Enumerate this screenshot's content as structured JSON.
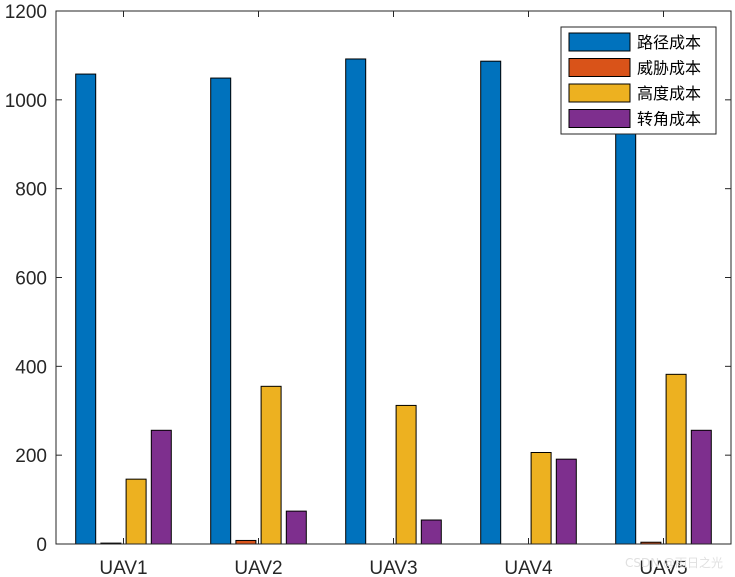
{
  "chart_data": {
    "type": "bar",
    "categories": [
      "UAV1",
      "UAV2",
      "UAV3",
      "UAV4",
      "UAV5"
    ],
    "series": [
      {
        "name": "路径成本",
        "color": "#0072BD",
        "values": [
          1058,
          1049,
          1092,
          1087,
          932
        ]
      },
      {
        "name": "威胁成本",
        "color": "#D95319",
        "values": [
          2,
          8,
          0,
          0,
          4
        ]
      },
      {
        "name": "高度成本",
        "color": "#EDB120",
        "values": [
          146,
          355,
          312,
          206,
          382
        ]
      },
      {
        "name": "转角成本",
        "color": "#7E2F8E",
        "values": [
          256,
          74,
          54,
          191,
          256
        ]
      }
    ],
    "title": "",
    "xlabel": "",
    "ylabel": "",
    "ylim": [
      0,
      1200
    ],
    "yticks": [
      0,
      200,
      400,
      600,
      800,
      1000,
      1200
    ],
    "grid": false,
    "legend_position": "top-right"
  },
  "watermark": "CSDN @雨日之光"
}
